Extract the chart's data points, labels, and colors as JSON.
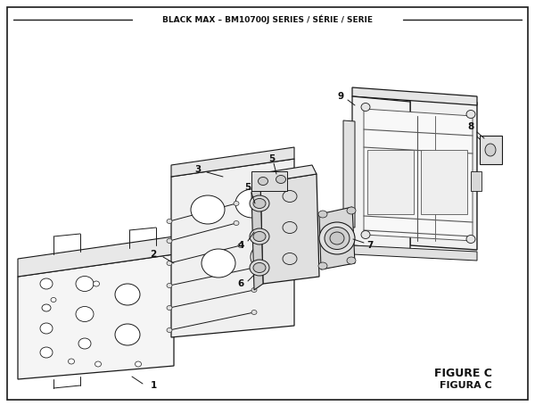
{
  "title": "BLACK MAX – BM10700J SERIES / SÉRIE / SERIE",
  "figure_label": "FIGURE C",
  "figura_label": "FIGURA C",
  "bg_color": "#ffffff",
  "border_color": "#1a1a1a",
  "text_color": "#111111",
  "figsize": [
    6.0,
    4.55
  ],
  "dpi": 100,
  "xlim": [
    0,
    600
  ],
  "ylim": [
    0,
    455
  ]
}
